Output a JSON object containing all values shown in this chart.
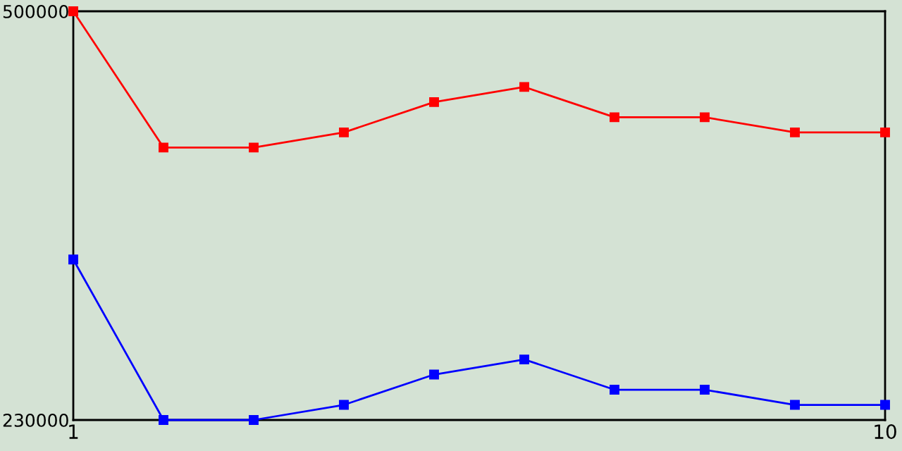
{
  "chart_data": {
    "type": "line",
    "x": [
      1,
      2,
      3,
      4,
      5,
      6,
      7,
      8,
      9,
      10
    ],
    "series": [
      {
        "color": "#ff0000",
        "values": [
          500000,
          410000,
          410000,
          420000,
          440000,
          450000,
          430000,
          430000,
          420000,
          420000
        ]
      },
      {
        "color": "#0000ff",
        "values": [
          336000,
          230000,
          230000,
          240000,
          260000,
          270000,
          250000,
          250000,
          240000,
          240000
        ]
      }
    ],
    "xlim": [
      1,
      10
    ],
    "ylim": [
      230000,
      500000
    ],
    "xticks": [
      1,
      10
    ],
    "yticks": [
      230000,
      500000
    ],
    "marker": "square",
    "line_style": "solid",
    "legend": false
  }
}
